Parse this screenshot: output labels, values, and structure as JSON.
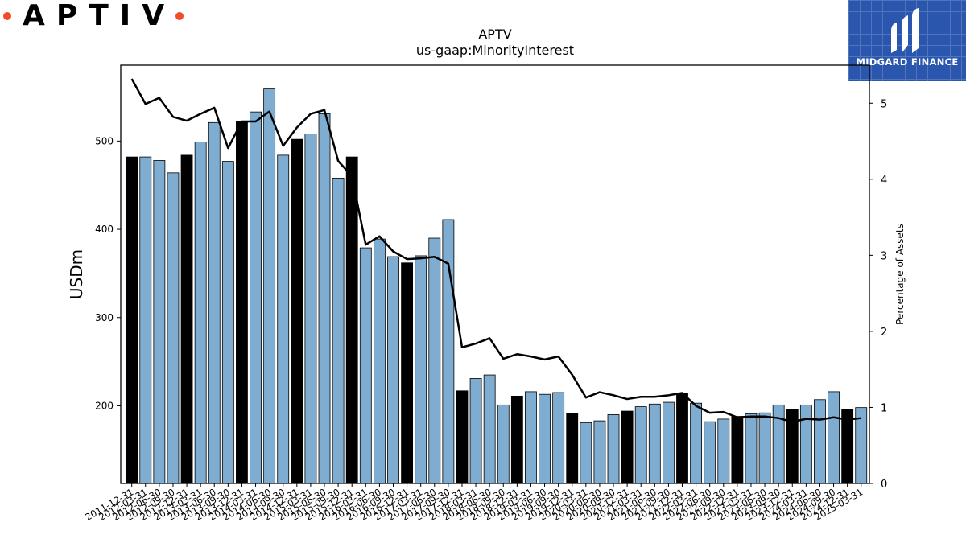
{
  "logo": {
    "text": "APTIV",
    "dot_color": "#f24c27"
  },
  "brand": {
    "name": "MIDGARD FINANCE",
    "bg_color": "#2a57ad",
    "icon": "midgard-logo-icon"
  },
  "chart_data": {
    "type": "bar",
    "title": "APTV",
    "subtitle": "us-gaap:MinorityInterest",
    "ylabel": "USDm",
    "y2label": "Percentage of Assets",
    "ylim": [
      112,
      586
    ],
    "y2lim": [
      0,
      5.5
    ],
    "yticks": [
      200,
      300,
      400,
      500
    ],
    "y2ticks": [
      0,
      1,
      2,
      3,
      4,
      5
    ],
    "categories": [
      "2011-12-31",
      "2012-03-31",
      "2012-06-30",
      "2012-09-30",
      "2012-12-31",
      "2013-03-31",
      "2013-06-30",
      "2013-09-30",
      "2013-12-31",
      "2014-03-31",
      "2014-06-30",
      "2014-09-30",
      "2014-12-31",
      "2015-03-31",
      "2015-06-30",
      "2015-09-30",
      "2015-12-31",
      "2016-03-31",
      "2016-06-30",
      "2016-09-30",
      "2016-12-31",
      "2017-03-31",
      "2017-06-30",
      "2017-09-30",
      "2017-12-31",
      "2018-03-31",
      "2018-06-30",
      "2018-09-30",
      "2018-12-31",
      "2019-03-31",
      "2019-06-30",
      "2019-09-30",
      "2019-12-31",
      "2020-03-31",
      "2020-06-30",
      "2020-09-30",
      "2020-12-31",
      "2021-03-31",
      "2021-06-30",
      "2021-09-30",
      "2021-12-31",
      "2022-03-31",
      "2022-06-30",
      "2022-09-30",
      "2022-12-31",
      "2023-03-31",
      "2023-06-30",
      "2023-09-30",
      "2023-12-31",
      "2024-03-31",
      "2024-06-30",
      "2024-09-30",
      "2024-12-31",
      "2025-03-31"
    ],
    "series": [
      {
        "kind": "bar",
        "values": [
          482,
          482,
          478,
          464,
          484,
          499,
          521,
          477,
          522,
          533,
          559,
          484,
          502,
          508,
          531,
          458,
          482,
          379,
          389,
          369,
          362,
          370,
          390,
          411,
          217,
          231,
          235,
          201,
          211,
          216,
          213,
          215,
          191,
          181,
          183,
          190,
          194,
          199,
          202,
          204,
          214,
          203,
          182,
          185,
          188,
          191,
          192,
          201,
          196,
          201,
          207,
          216,
          196,
          198
        ],
        "fiscal_year_end": [
          true,
          false,
          false,
          false,
          true,
          false,
          false,
          false,
          true,
          false,
          false,
          false,
          true,
          false,
          false,
          false,
          true,
          false,
          false,
          false,
          true,
          false,
          false,
          false,
          true,
          false,
          false,
          false,
          true,
          false,
          false,
          false,
          true,
          false,
          false,
          false,
          true,
          false,
          false,
          false,
          true,
          false,
          false,
          false,
          true,
          false,
          false,
          false,
          true,
          false,
          false,
          false,
          true,
          false
        ],
        "color": "#7fadd1",
        "highlight_color": "#000000"
      },
      {
        "kind": "line",
        "axis": "right",
        "values": [
          5.32,
          4.99,
          5.07,
          4.82,
          4.77,
          4.86,
          4.94,
          4.41,
          4.76,
          4.76,
          4.89,
          4.44,
          4.68,
          4.86,
          4.91,
          4.24,
          4.04,
          3.14,
          3.25,
          3.05,
          2.95,
          2.96,
          2.98,
          2.89,
          1.79,
          1.84,
          1.91,
          1.64,
          1.7,
          1.67,
          1.63,
          1.67,
          1.43,
          1.13,
          1.2,
          1.16,
          1.11,
          1.14,
          1.14,
          1.16,
          1.19,
          1.02,
          0.93,
          0.94,
          0.87,
          0.88,
          0.88,
          0.86,
          0.81,
          0.85,
          0.84,
          0.87,
          0.84,
          0.86
        ],
        "color": "#000000"
      }
    ]
  }
}
